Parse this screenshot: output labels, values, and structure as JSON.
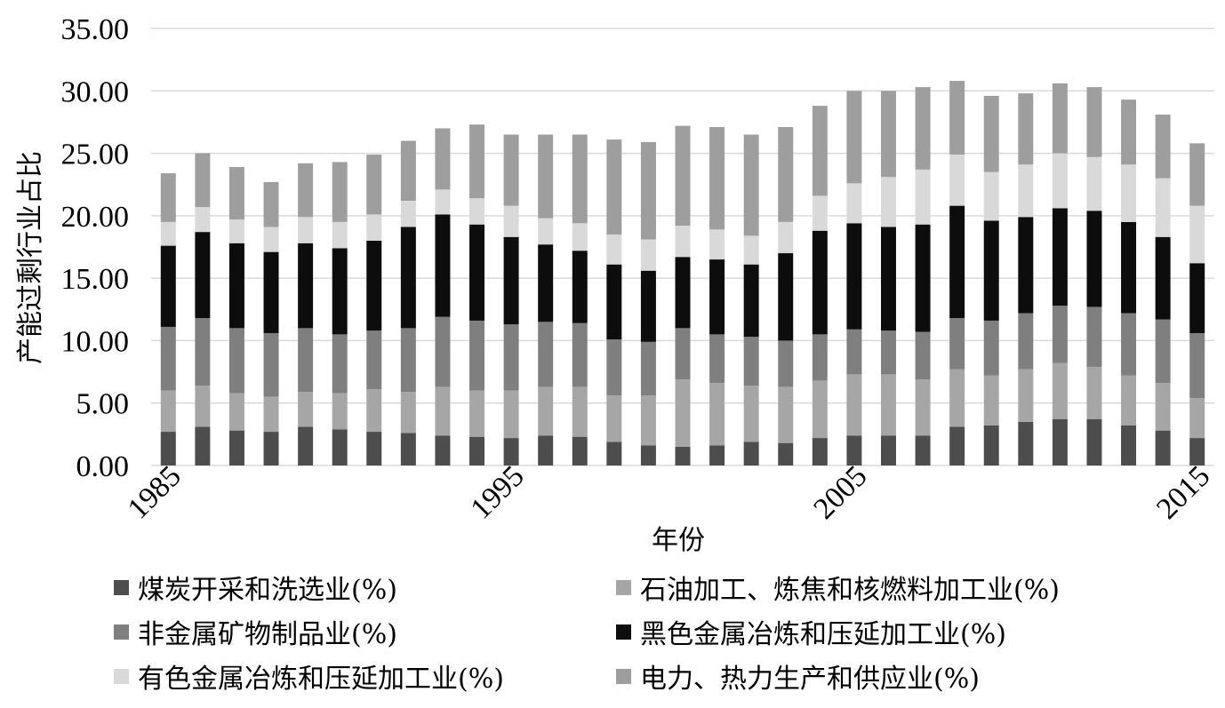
{
  "chart_data": {
    "type": "bar",
    "stacked": true,
    "xlabel": "年份",
    "ylabel": "产能过剩行业占比",
    "ylim": [
      0,
      35
    ],
    "yticks": [
      "0.00",
      "5.00",
      "10.00",
      "15.00",
      "20.00",
      "25.00",
      "30.00",
      "35.00"
    ],
    "xtick_labels": [
      "1985",
      "1995",
      "2005",
      "2015"
    ],
    "xtick_values": [
      1985,
      1995,
      2005,
      2015
    ],
    "grid": true,
    "legend_position": "bottom",
    "categories": [
      1985,
      1986,
      1987,
      1988,
      1989,
      1990,
      1991,
      1992,
      1993,
      1994,
      1995,
      1996,
      1997,
      1998,
      1999,
      2000,
      2001,
      2002,
      2003,
      2004,
      2005,
      2006,
      2007,
      2008,
      2009,
      2010,
      2011,
      2012,
      2013,
      2014,
      2015
    ],
    "series": [
      {
        "name": "煤炭开采和洗选业(%)",
        "color": "#4d4d4d",
        "values": [
          2.7,
          3.1,
          2.8,
          2.7,
          3.1,
          2.9,
          2.7,
          2.6,
          2.4,
          2.3,
          2.2,
          2.4,
          2.3,
          1.9,
          1.6,
          1.5,
          1.6,
          1.9,
          1.8,
          2.2,
          2.4,
          2.4,
          2.4,
          3.1,
          3.2,
          3.5,
          3.7,
          3.7,
          3.2,
          2.8,
          2.2
        ]
      },
      {
        "name": "石油加工、炼焦和核燃料加工业(%)",
        "color": "#a6a6a6",
        "values": [
          3.3,
          3.3,
          3.0,
          2.8,
          2.8,
          2.9,
          3.4,
          3.3,
          3.9,
          3.7,
          3.8,
          3.9,
          4.0,
          3.7,
          4.0,
          5.4,
          5.0,
          4.5,
          4.5,
          4.6,
          4.9,
          4.9,
          4.5,
          4.6,
          4.0,
          4.2,
          4.5,
          4.2,
          4.0,
          3.8,
          3.2
        ]
      },
      {
        "name": "非金属矿物制品业(%)",
        "color": "#7f7f7f",
        "values": [
          5.1,
          5.4,
          5.2,
          5.1,
          5.1,
          4.7,
          4.7,
          5.1,
          5.6,
          5.6,
          5.3,
          5.2,
          5.1,
          4.5,
          4.3,
          4.1,
          3.9,
          3.9,
          3.7,
          3.7,
          3.6,
          3.5,
          3.8,
          4.1,
          4.4,
          4.5,
          4.6,
          4.8,
          5.0,
          5.1,
          5.2
        ]
      },
      {
        "name": "黑色金属冶炼和压延加工业(%)",
        "color": "#0d0d0d",
        "values": [
          6.5,
          6.9,
          6.8,
          6.5,
          6.8,
          6.9,
          7.2,
          8.1,
          8.2,
          7.7,
          7.0,
          6.2,
          5.8,
          6.0,
          5.7,
          5.7,
          6.0,
          5.8,
          7.0,
          8.3,
          8.5,
          8.3,
          8.6,
          9.0,
          8.0,
          7.7,
          7.8,
          7.7,
          7.3,
          6.6,
          5.6
        ]
      },
      {
        "name": "有色金属冶炼和压延加工业(%)",
        "color": "#d9d9d9",
        "values": [
          1.9,
          2.0,
          1.9,
          2.0,
          2.1,
          2.1,
          2.1,
          2.1,
          2.0,
          2.1,
          2.5,
          2.1,
          2.2,
          2.4,
          2.5,
          2.5,
          2.4,
          2.3,
          2.5,
          2.8,
          3.2,
          4.0,
          4.4,
          4.1,
          3.9,
          4.2,
          4.4,
          4.3,
          4.6,
          4.7,
          4.6
        ]
      },
      {
        "name": "电力、热力生产和供应业(%)",
        "color": "#9e9e9e",
        "values": [
          3.9,
          4.3,
          4.2,
          3.6,
          4.3,
          4.8,
          4.8,
          4.8,
          4.9,
          5.9,
          5.7,
          6.7,
          7.1,
          7.6,
          7.8,
          8.0,
          8.2,
          8.1,
          7.6,
          7.2,
          7.4,
          6.9,
          6.6,
          5.9,
          6.1,
          5.7,
          5.6,
          5.6,
          5.2,
          5.1,
          5.0
        ]
      }
    ]
  }
}
